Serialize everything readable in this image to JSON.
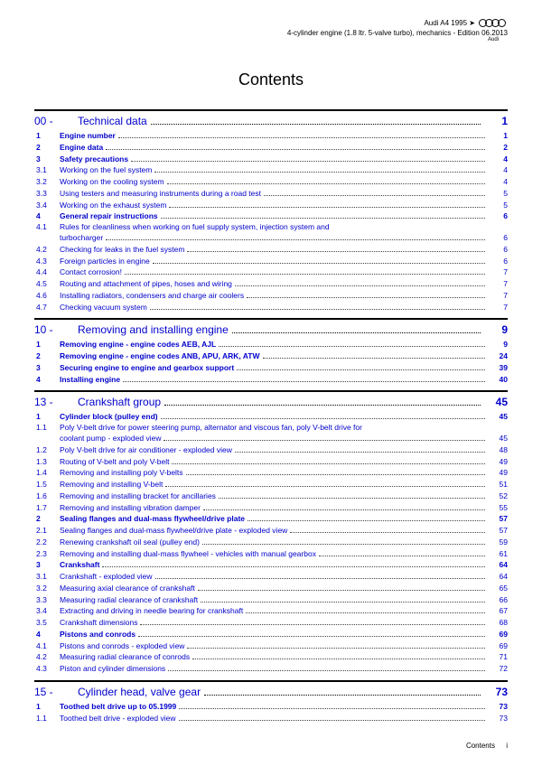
{
  "header": {
    "model": "Audi A4 1995 ➤",
    "subtitle": "4-cylinder engine (1.8 ltr. 5-valve turbo), mechanics - Edition 06.2013",
    "brand": "Audi"
  },
  "title": "Contents",
  "footer": {
    "label": "Contents",
    "page": "i"
  },
  "sections": [
    {
      "num": "00 -",
      "title": "Technical data",
      "page": "1",
      "blue": true,
      "entries": [
        {
          "num": "1",
          "title": "Engine number",
          "page": "1",
          "bold": true,
          "blue": true
        },
        {
          "num": "2",
          "title": "Engine data",
          "page": "2",
          "bold": true,
          "blue": true
        },
        {
          "num": "3",
          "title": "Safety precautions",
          "page": "4",
          "bold": true,
          "blue": true
        },
        {
          "num": "3.1",
          "title": "Working on the fuel system",
          "page": "4",
          "blue": true
        },
        {
          "num": "3.2",
          "title": "Working on the cooling system",
          "page": "4",
          "blue": true
        },
        {
          "num": "3.3",
          "title": "Using testers and measuring instruments during a road test",
          "page": "5",
          "blue": true
        },
        {
          "num": "3.4",
          "title": "Working on the exhaust system",
          "page": "5",
          "blue": true
        },
        {
          "num": "4",
          "title": "General repair instructions",
          "page": "6",
          "bold": true,
          "blue": true
        },
        {
          "num": "4.1",
          "title_wrap": [
            "Rules for cleanliness when working on fuel supply system, injection system and",
            "turbocharger"
          ],
          "page": "6",
          "blue": true
        },
        {
          "num": "4.2",
          "title": "Checking for leaks in the fuel system",
          "page": "6",
          "blue": true
        },
        {
          "num": "4.3",
          "title": "Foreign particles in engine",
          "page": "6",
          "blue": true
        },
        {
          "num": "4.4",
          "title": "Contact corrosion!",
          "page": "7",
          "blue": true
        },
        {
          "num": "4.5",
          "title": "Routing and attachment of pipes, hoses and wiring",
          "page": "7",
          "blue": true
        },
        {
          "num": "4.6",
          "title": "Installing radiators, condensers and charge air coolers",
          "page": "7",
          "blue": true
        },
        {
          "num": "4.7",
          "title": "Checking vacuum system",
          "page": "7",
          "blue": true
        }
      ]
    },
    {
      "num": "10 -",
      "title": "Removing and installing engine",
      "page": "9",
      "blue": true,
      "entries": [
        {
          "num": "1",
          "title": "Removing engine - engine codes AEB, AJL",
          "page": "9",
          "bold": true,
          "blue": true
        },
        {
          "num": "2",
          "title": "Removing engine - engine codes ANB, APU, ARK, ATW",
          "page": "24",
          "bold": true,
          "blue": true
        },
        {
          "num": "3",
          "title": "Securing engine to engine and gearbox support",
          "page": "39",
          "bold": true,
          "blue": true
        },
        {
          "num": "4",
          "title": "Installing engine",
          "page": "40",
          "bold": true,
          "blue": true
        }
      ]
    },
    {
      "num": "13 -",
      "title": "Crankshaft group",
      "page": "45",
      "blue": true,
      "entries": [
        {
          "num": "1",
          "title": "Cylinder block (pulley end)",
          "page": "45",
          "bold": true,
          "blue": true
        },
        {
          "num": "1.1",
          "title_wrap": [
            "Poly V-belt drive for power steering pump, alternator and viscous fan, poly V-belt drive for",
            "coolant pump - exploded view"
          ],
          "page": "45",
          "blue": true
        },
        {
          "num": "1.2",
          "title": "Poly V-belt drive for air conditioner - exploded view",
          "page": "48",
          "blue": true
        },
        {
          "num": "1.3",
          "title": "Routing of V-belt and poly V-belt",
          "page": "49",
          "blue": true
        },
        {
          "num": "1.4",
          "title": "Removing and installing poly V-belts",
          "page": "49",
          "blue": true
        },
        {
          "num": "1.5",
          "title": "Removing and installing V-belt",
          "page": "51",
          "blue": true
        },
        {
          "num": "1.6",
          "title": "Removing and installing bracket for ancillaries",
          "page": "52",
          "blue": true
        },
        {
          "num": "1.7",
          "title": "Removing and installing vibration damper",
          "page": "55",
          "blue": true
        },
        {
          "num": "2",
          "title": "Sealing flanges and dual-mass flywheel/drive plate",
          "page": "57",
          "bold": true,
          "blue": true
        },
        {
          "num": "2.1",
          "title": "Sealing flanges and dual-mass flywheel/drive plate - exploded view",
          "page": "57",
          "blue": true
        },
        {
          "num": "2.2",
          "title": "Renewing crankshaft oil seal (pulley end)",
          "page": "59",
          "blue": true
        },
        {
          "num": "2.3",
          "title": "Removing and installing dual-mass flywheel - vehicles with manual gearbox",
          "page": "61",
          "blue": true
        },
        {
          "num": "3",
          "title": "Crankshaft",
          "page": "64",
          "bold": true,
          "blue": true
        },
        {
          "num": "3.1",
          "title": "Crankshaft - exploded view",
          "page": "64",
          "blue": true
        },
        {
          "num": "3.2",
          "title": "Measuring axial clearance of crankshaft",
          "page": "65",
          "blue": true
        },
        {
          "num": "3.3",
          "title": "Measuring radial clearance of crankshaft",
          "page": "66",
          "blue": true
        },
        {
          "num": "3.4",
          "title": "Extracting and driving in needle bearing for crankshaft",
          "page": "67",
          "blue": true
        },
        {
          "num": "3.5",
          "title": "Crankshaft dimensions",
          "page": "68",
          "blue": true
        },
        {
          "num": "4",
          "title": "Pistons and conrods",
          "page": "69",
          "bold": true,
          "blue": true
        },
        {
          "num": "4.1",
          "title": "Pistons and conrods - exploded view",
          "page": "69",
          "blue": true
        },
        {
          "num": "4.2",
          "title": "Measuring radial clearance of conrods",
          "page": "71",
          "blue": true
        },
        {
          "num": "4.3",
          "title": "Piston and cylinder dimensions",
          "page": "72",
          "blue": true
        }
      ]
    },
    {
      "num": "15 -",
      "title": "Cylinder head, valve gear",
      "page": "73",
      "blue": true,
      "entries": [
        {
          "num": "1",
          "title": "Toothed belt drive up to 05.1999",
          "page": "73",
          "bold": true,
          "blue": true
        },
        {
          "num": "1.1",
          "title": "Toothed belt drive - exploded view",
          "page": "73",
          "blue": true
        }
      ]
    }
  ]
}
